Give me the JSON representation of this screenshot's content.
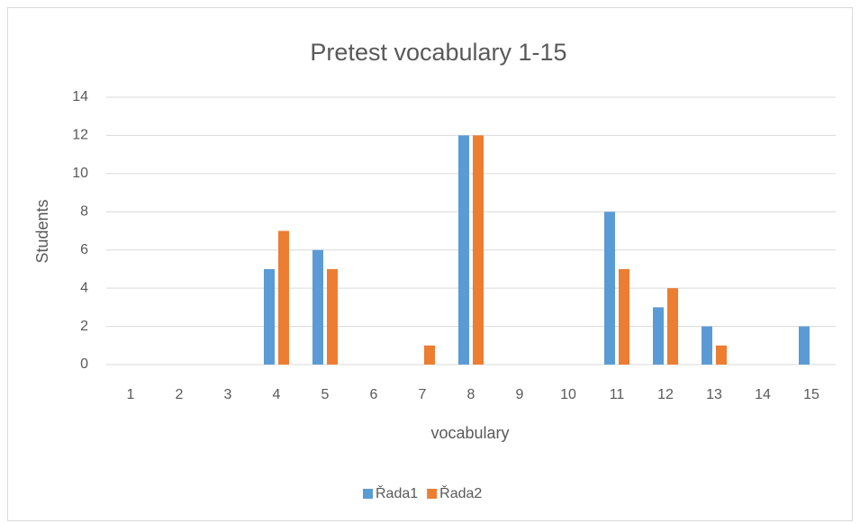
{
  "chart_data": {
    "type": "bar",
    "title": "Pretest vocabulary 1-15",
    "x_label": "vocabulary",
    "y_label": "Students",
    "categories": [
      "1",
      "2",
      "3",
      "4",
      "5",
      "6",
      "7",
      "8",
      "9",
      "10",
      "11",
      "12",
      "13",
      "14",
      "15"
    ],
    "series": [
      {
        "name": "Řada1",
        "color": "#5b9bd5",
        "values": [
          0,
          0,
          0,
          5,
          6,
          0,
          0,
          12,
          0,
          0,
          8,
          3,
          2,
          0,
          2
        ]
      },
      {
        "name": "Řada2",
        "color": "#ed7d31",
        "values": [
          0,
          0,
          0,
          7,
          5,
          0,
          1,
          12,
          0,
          0,
          5,
          4,
          1,
          0,
          0
        ]
      }
    ],
    "ylim": [
      0,
      14
    ],
    "yticks": [
      0,
      2,
      4,
      6,
      8,
      10,
      12,
      14
    ],
    "grid": true,
    "legend": "bottom"
  }
}
